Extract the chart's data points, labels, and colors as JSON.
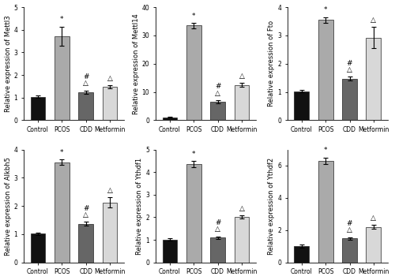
{
  "panels": [
    {
      "ylabel": "Relative expression of Mettl3",
      "ylim": [
        0,
        5
      ],
      "yticks": [
        0,
        1,
        2,
        3,
        4,
        5
      ],
      "values": [
        1.03,
        3.72,
        1.25,
        1.48
      ],
      "errors": [
        0.05,
        0.42,
        0.07,
        0.06
      ],
      "ann_pcos": "*",
      "ann_cdd": "#\n△",
      "ann_met": "△",
      "categories": [
        "Control",
        "PCOS",
        "CDD",
        "Metformin"
      ]
    },
    {
      "ylabel": "Relative expression of Mettl14",
      "ylim": [
        0,
        40
      ],
      "yticks": [
        0,
        10,
        20,
        30,
        40
      ],
      "values": [
        1.0,
        33.5,
        6.5,
        12.5
      ],
      "errors": [
        0.15,
        0.9,
        0.6,
        0.7
      ],
      "ann_pcos": "*",
      "ann_cdd": "#\n△",
      "ann_met": "△",
      "categories": [
        "Control",
        "PCOS",
        "CDD",
        "Metformin"
      ]
    },
    {
      "ylabel": "Relative expression of Fto",
      "ylim": [
        0,
        4
      ],
      "yticks": [
        0,
        1,
        2,
        3,
        4
      ],
      "values": [
        1.02,
        3.55,
        1.47,
        2.92
      ],
      "errors": [
        0.04,
        0.1,
        0.07,
        0.38
      ],
      "ann_pcos": "*",
      "ann_cdd": "#\n△",
      "ann_met": "△",
      "categories": [
        "Control",
        "PCOS",
        "CDD",
        "Metformin"
      ]
    },
    {
      "ylabel": "Relative expression of Alkbh5",
      "ylim": [
        0,
        4
      ],
      "yticks": [
        0,
        1,
        2,
        3,
        4
      ],
      "values": [
        1.02,
        3.55,
        1.37,
        2.12
      ],
      "errors": [
        0.04,
        0.1,
        0.07,
        0.18
      ],
      "ann_pcos": "*",
      "ann_cdd": "#\n△",
      "ann_met": "△",
      "categories": [
        "Control",
        "PCOS",
        "CDD",
        "Metformin"
      ]
    },
    {
      "ylabel": "Relative expression of Ythdf1",
      "ylim": [
        0,
        5
      ],
      "yticks": [
        0,
        1,
        2,
        3,
        4,
        5
      ],
      "values": [
        1.02,
        4.35,
        1.1,
        2.0
      ],
      "errors": [
        0.04,
        0.15,
        0.06,
        0.07
      ],
      "ann_pcos": "*",
      "ann_cdd": "#\n△",
      "ann_met": "△",
      "categories": [
        "Control",
        "PCOS",
        "CDD",
        "Metformin"
      ]
    },
    {
      "ylabel": "Relative expression of Ythdf2",
      "ylim": [
        0,
        7
      ],
      "yticks": [
        0,
        2,
        4,
        6
      ],
      "values": [
        1.0,
        6.3,
        1.5,
        2.2
      ],
      "errors": [
        0.1,
        0.2,
        0.07,
        0.12
      ],
      "ann_pcos": "*",
      "ann_cdd": "#\n△",
      "ann_met": "△",
      "categories": [
        "Control",
        "PCOS",
        "CDD",
        "Metformin"
      ]
    }
  ],
  "bar_colors": [
    "#111111",
    "#aaaaaa",
    "#666666",
    "#d8d8d8"
  ],
  "bar_edgecolor": "#222222",
  "background_color": "#ffffff",
  "annotation_fontsize": 6.5,
  "label_fontsize": 6.0,
  "tick_fontsize": 5.5,
  "figsize": [
    5.0,
    3.55
  ],
  "dpi": 100
}
